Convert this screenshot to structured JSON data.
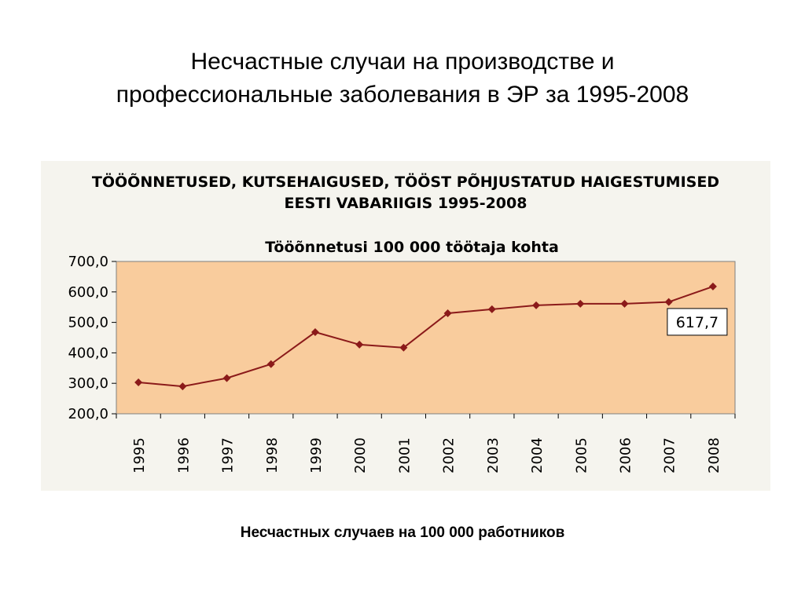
{
  "slide": {
    "title_line1": "Несчастные случаи на производстве и",
    "title_line2": "профессиональные заболевания в ЭР за 1995-2008",
    "caption": "Несчастных случаев на 100 000 работников"
  },
  "chart_data": {
    "type": "line",
    "heading_line1": "TÖÖÕNNETUSED, KUTSEHAIGUSED, TÖÖST PÕHJUSTATUD HAIGESTUMISED",
    "heading_line2": "EESTI VABARIIGIS 1995-2008",
    "title": "Tööõnnetusi 100 000 töötaja kohta",
    "xlabel": "",
    "ylabel": "",
    "categories": [
      "1995",
      "1996",
      "1997",
      "1998",
      "1999",
      "2000",
      "2001",
      "2002",
      "2003",
      "2004",
      "2005",
      "2006",
      "2007",
      "2008"
    ],
    "series": [
      {
        "values": [
          303,
          290,
          317,
          363,
          468,
          427,
          417,
          530,
          543,
          556,
          561,
          561,
          567,
          617.7
        ]
      }
    ],
    "ylim": [
      200,
      700
    ],
    "y_ticks": [
      200,
      300,
      400,
      500,
      600,
      700
    ],
    "y_tick_labels": [
      "200,0",
      "300,0",
      "400,0",
      "500,0",
      "600,0",
      "700,0"
    ],
    "data_label": "617,7",
    "grid": false,
    "colors": {
      "plot_background": "#f9cc9d",
      "line": "#8b1a1a",
      "marker": "#8b1a1a",
      "panel_background": "#f5f4ee"
    }
  }
}
